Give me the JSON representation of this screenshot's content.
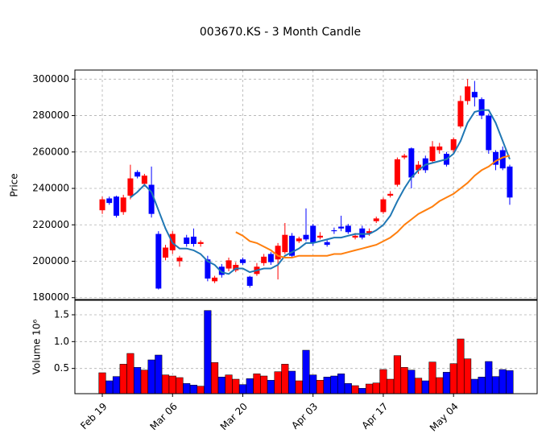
{
  "chart_data": {
    "type": "candlestick",
    "title": "003670.KS - 3 Month Candle",
    "ylabel": "Price",
    "volume_ylabel": "Volume  10⁶",
    "up_color": "#ff0000",
    "down_color": "#0000ff",
    "grid": true,
    "xlim": [
      -3.9,
      61.9
    ],
    "xticks": [
      {
        "value": 0,
        "label": "Feb 19"
      },
      {
        "value": 10,
        "label": "Mar 06"
      },
      {
        "value": 20,
        "label": "Mar 20"
      },
      {
        "value": 30,
        "label": "Apr 03"
      },
      {
        "value": 40,
        "label": "Apr 17"
      },
      {
        "value": 50,
        "label": "May 04"
      }
    ],
    "ylim": [
      179000,
      305000
    ],
    "yticks": [
      180000,
      200000,
      220000,
      240000,
      260000,
      280000,
      300000
    ],
    "volume_ylim": [
      0.03,
      1.77
    ],
    "volume_yticks": [
      0.5,
      {
        "value": 1,
        "label": "1.0"
      },
      1.5
    ],
    "open": [
      228000,
      234500,
      235500,
      227000,
      236000,
      249000,
      242500,
      242000,
      215000,
      202000,
      206000,
      200000,
      213000,
      213500,
      209500,
      201000,
      189000,
      197000,
      196000,
      195000,
      201000,
      191500,
      193000,
      199000,
      204000,
      201000,
      205000,
      214000,
      211000,
      214500,
      219500,
      213000,
      210500,
      217000,
      219000,
      219500,
      213000,
      218000,
      215500,
      222000,
      227000,
      236000,
      242000,
      257000,
      262000,
      250000,
      256500,
      255000,
      261000,
      259000,
      261000,
      274000,
      288000,
      293000,
      289000,
      280000,
      260000,
      261000,
      252000
    ],
    "high": [
      235500,
      235500,
      236000,
      236500,
      253000,
      250000,
      248000,
      252000,
      216500,
      209000,
      216500,
      203000,
      214500,
      218000,
      211500,
      203000,
      192000,
      198500,
      202000,
      199500,
      202000,
      192000,
      199000,
      204000,
      205000,
      210000,
      221000,
      215500,
      213500,
      229000,
      220500,
      216000,
      211500,
      218500,
      225000,
      220500,
      215500,
      219500,
      218000,
      224500,
      235000,
      238500,
      257000,
      259000,
      262500,
      255000,
      258000,
      266000,
      265000,
      260000,
      268000,
      291000,
      300000,
      299000,
      290000,
      281000,
      261000,
      263000,
      253000
    ],
    "low": [
      226000,
      231000,
      224000,
      225500,
      234000,
      245500,
      241000,
      224000,
      184500,
      200500,
      204000,
      197000,
      208000,
      208000,
      208000,
      189000,
      188000,
      191000,
      194500,
      194000,
      198000,
      185500,
      192000,
      197500,
      198000,
      190000,
      204000,
      202000,
      210000,
      211000,
      208500,
      212000,
      208000,
      215000,
      216500,
      215000,
      212000,
      212000,
      214000,
      221000,
      226000,
      235000,
      241000,
      256000,
      240000,
      248000,
      248500,
      254000,
      259000,
      252000,
      259000,
      273000,
      286000,
      285000,
      278000,
      259000,
      250000,
      250000,
      231000
    ],
    "close": [
      234000,
      232000,
      225000,
      235000,
      245500,
      246500,
      247000,
      226000,
      185000,
      207500,
      215000,
      202000,
      209500,
      209500,
      210500,
      190500,
      191000,
      192500,
      200500,
      198000,
      199000,
      186500,
      197000,
      202500,
      199500,
      208500,
      214500,
      203000,
      212500,
      212000,
      210000,
      214000,
      209000,
      216500,
      218000,
      216000,
      214000,
      213000,
      216500,
      223500,
      234000,
      237000,
      256000,
      258000,
      246000,
      253000,
      250000,
      263000,
      263000,
      253000,
      267000,
      288000,
      296000,
      290000,
      280000,
      261000,
      253000,
      251000,
      235000
    ],
    "volume": [
      0.42,
      0.27,
      0.35,
      0.58,
      0.78,
      0.52,
      0.47,
      0.66,
      0.75,
      0.38,
      0.36,
      0.33,
      0.22,
      0.19,
      0.17,
      1.58,
      0.61,
      0.34,
      0.38,
      0.3,
      0.2,
      0.31,
      0.4,
      0.36,
      0.28,
      0.44,
      0.58,
      0.45,
      0.27,
      0.84,
      0.38,
      0.28,
      0.34,
      0.36,
      0.4,
      0.22,
      0.18,
      0.13,
      0.21,
      0.23,
      0.48,
      0.3,
      0.74,
      0.52,
      0.47,
      0.32,
      0.27,
      0.62,
      0.33,
      0.43,
      0.59,
      1.05,
      0.68,
      0.3,
      0.34,
      0.63,
      0.35,
      0.48,
      0.46
    ],
    "series": [
      {
        "color": "#1f77b4",
        "values": [
          null,
          null,
          null,
          null,
          235000,
          238000,
          242000,
          238000,
          228000,
          218000,
          210000,
          207000,
          207000,
          206000,
          204000,
          200000,
          198000,
          194000,
          193000,
          196000,
          196000,
          194000,
          195000,
          196000,
          196000,
          198000,
          203000,
          205000,
          207000,
          210000,
          210000,
          211000,
          212000,
          213000,
          213000,
          214000,
          215000,
          215000,
          215000,
          217000,
          220000,
          225000,
          233000,
          240000,
          246000,
          250000,
          253000,
          254000,
          255000,
          256000,
          259000,
          266000,
          276000,
          282000,
          283000,
          283000,
          276000,
          266000,
          256000
        ]
      },
      {
        "color": "#ff7f0e",
        "values": [
          null,
          null,
          null,
          null,
          null,
          null,
          null,
          null,
          null,
          null,
          null,
          null,
          null,
          null,
          null,
          null,
          null,
          null,
          null,
          216000,
          214000,
          211000,
          210000,
          208000,
          206000,
          203000,
          202000,
          202000,
          203000,
          203000,
          203000,
          203000,
          203000,
          204000,
          204000,
          205000,
          206000,
          207000,
          208000,
          209000,
          211000,
          213000,
          216000,
          220000,
          223000,
          226000,
          228000,
          230000,
          233000,
          235000,
          237000,
          240000,
          243000,
          247000,
          250000,
          252000,
          255000,
          257000,
          258000
        ]
      }
    ]
  }
}
